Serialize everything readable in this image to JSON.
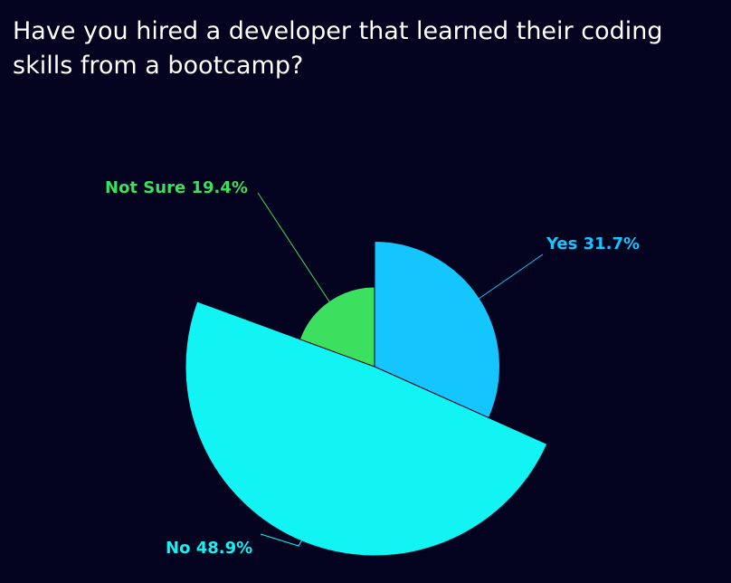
{
  "chart_data": {
    "type": "pie",
    "rose": true,
    "title": "Have you hired a developer that learned their coding skills from a bootcamp?",
    "categories": [
      "Yes",
      "No",
      "Not Sure"
    ],
    "values": [
      31.7,
      48.9,
      19.4
    ],
    "value_labels": [
      "31.7%",
      "48.9%",
      "19.4%"
    ],
    "colors": [
      "#14c6fd",
      "#12f3f3",
      "#3ddf5e"
    ]
  }
}
